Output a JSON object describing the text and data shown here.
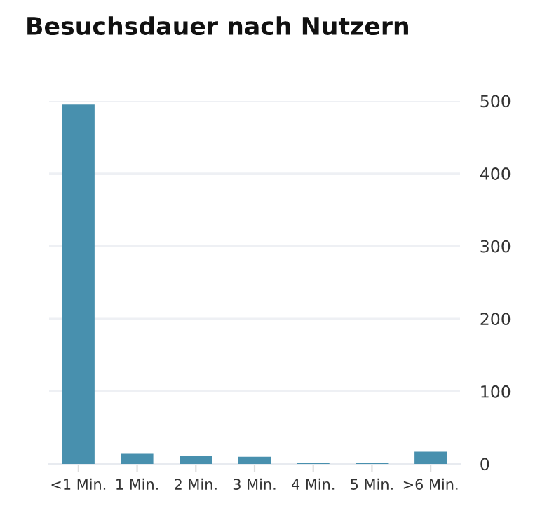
{
  "chart_data": {
    "type": "bar",
    "title": "Besuchsdauer nach Nutzern",
    "categories": [
      "<1 Min.",
      "1 Min.",
      "2 Min.",
      "3 Min.",
      "4 Min.",
      "5 Min.",
      ">6 Min."
    ],
    "values": [
      495,
      14,
      11,
      10,
      2,
      1,
      17
    ],
    "color": "#4890ae",
    "ylim": [
      0,
      500
    ],
    "yticks": [
      0,
      100,
      200,
      300,
      400,
      500
    ],
    "grid": "y"
  }
}
